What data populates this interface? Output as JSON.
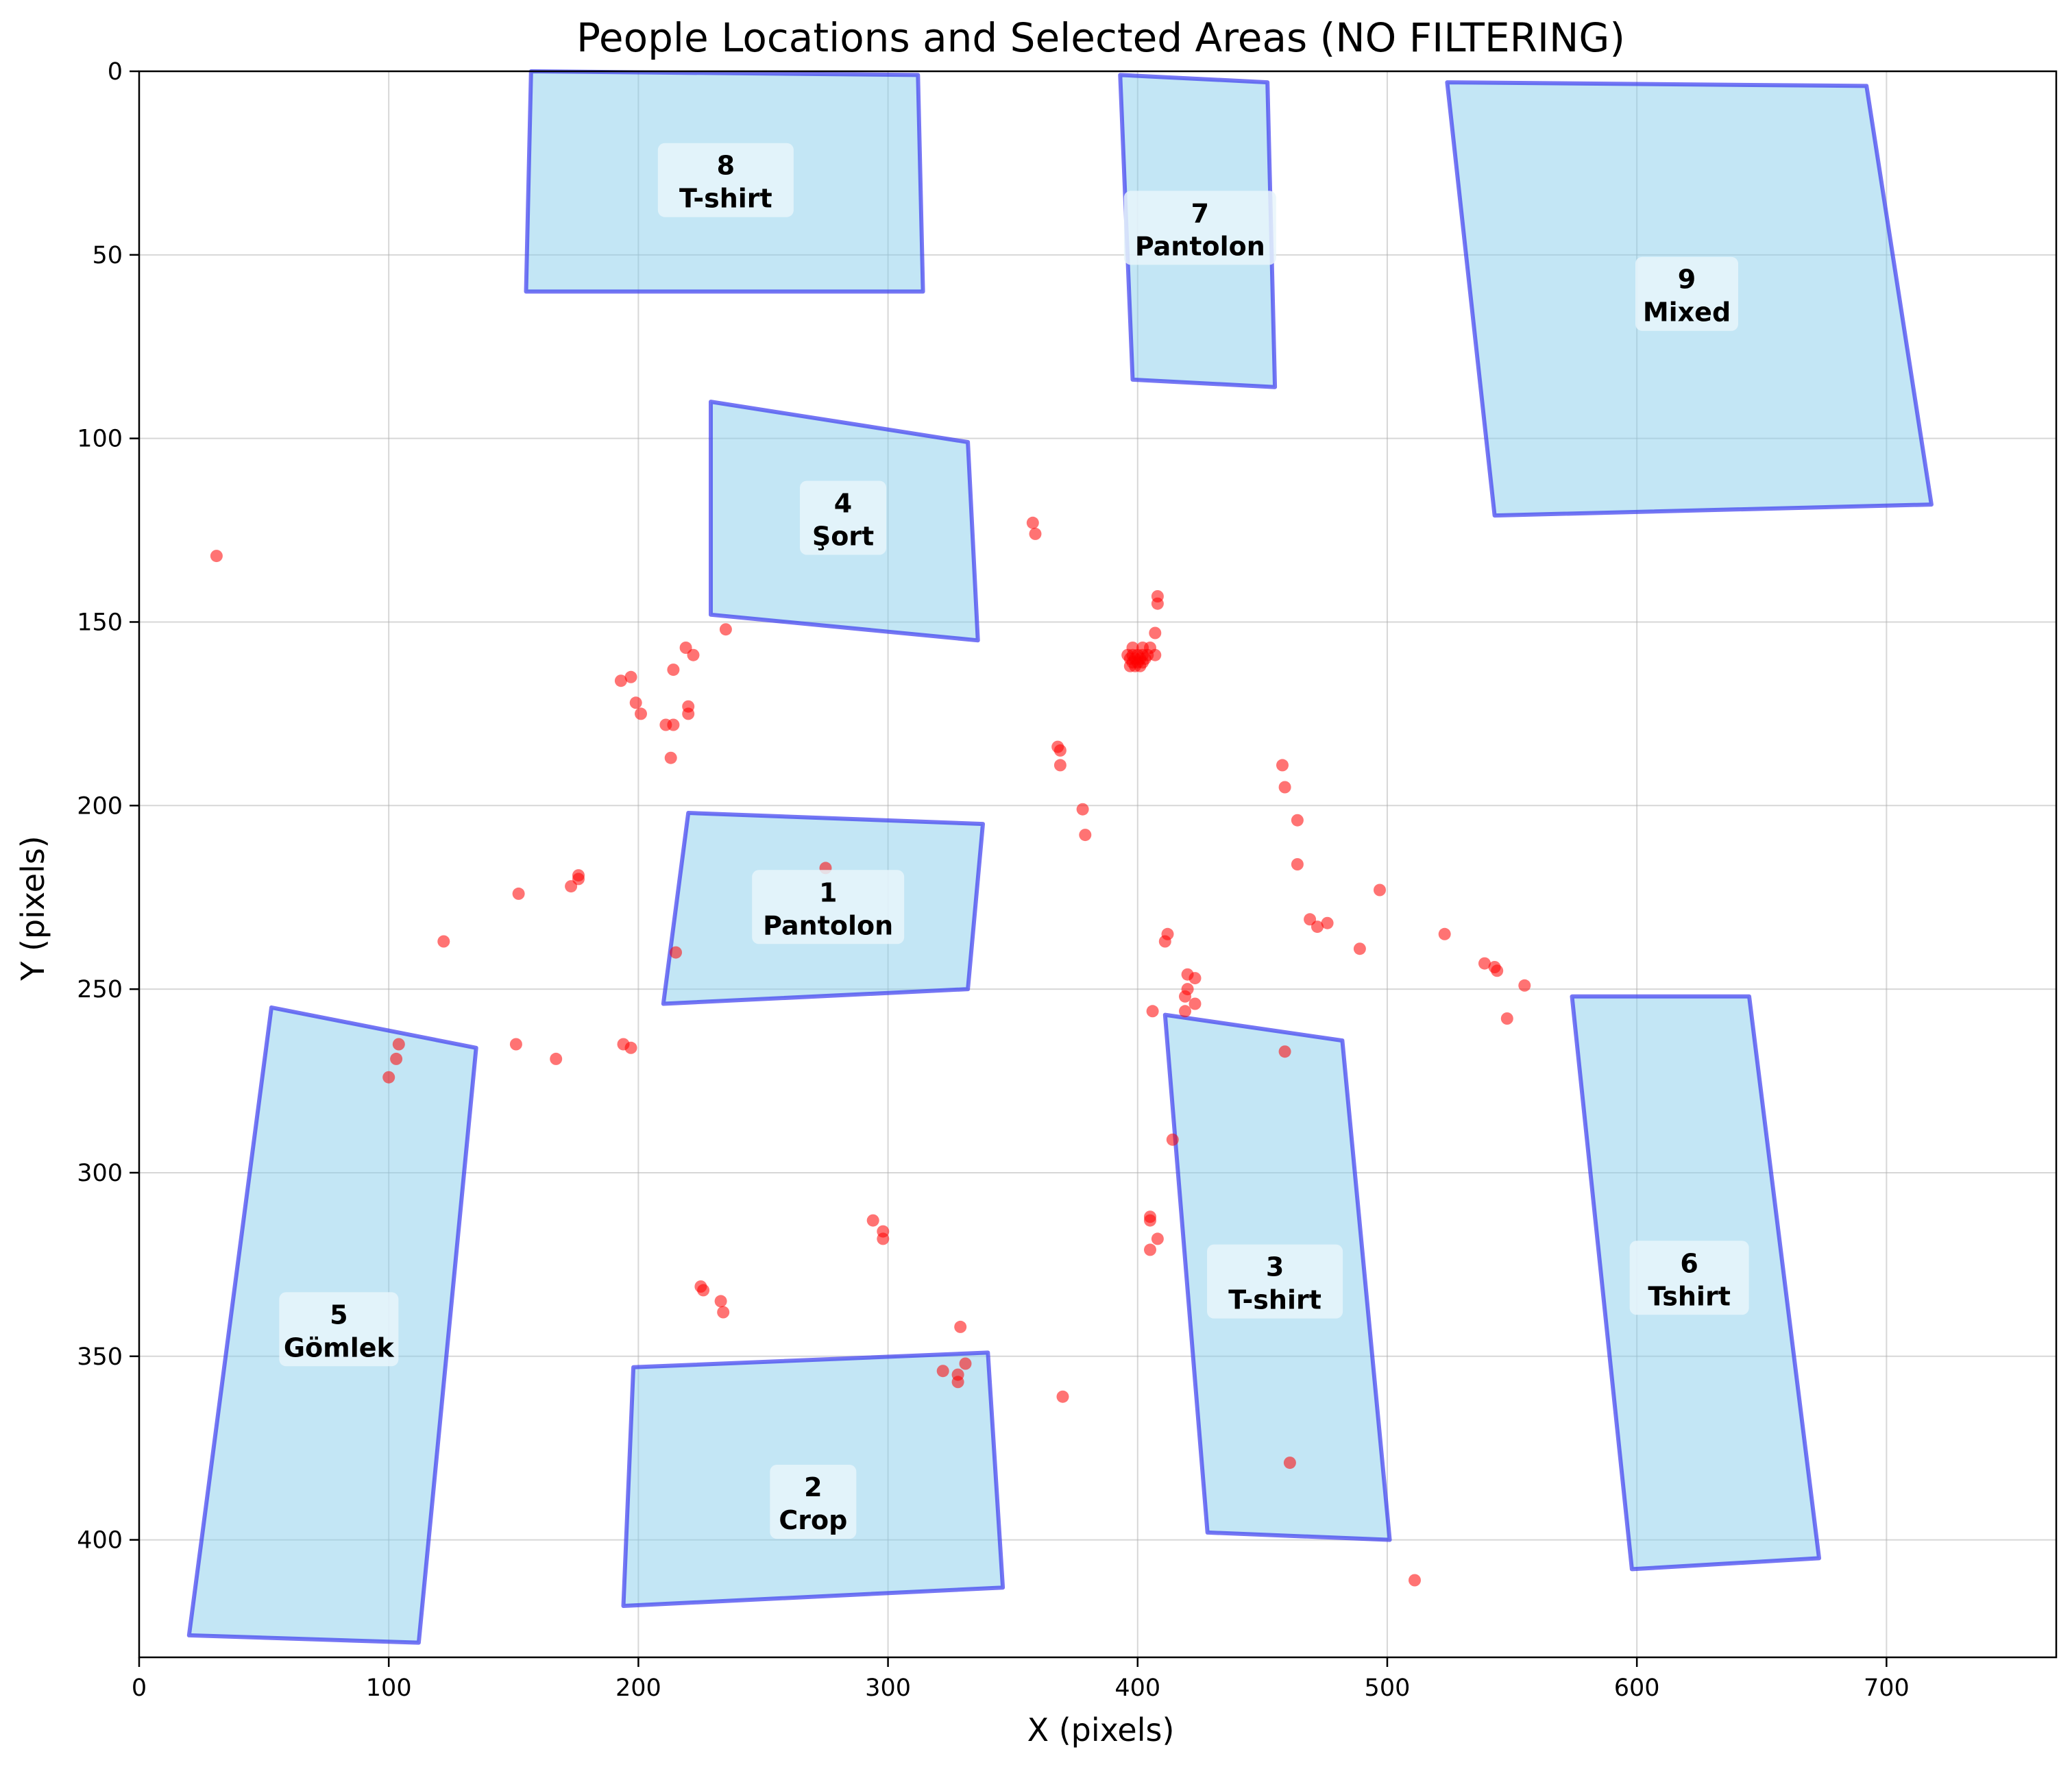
{
  "chart_data": {
    "type": "scatter",
    "title": "People Locations and Selected Areas (NO FILTERING)",
    "xlabel": "X (pixels)",
    "ylabel": "Y (pixels)",
    "xlim": [
      0,
      768
    ],
    "ylim": [
      432,
      0
    ],
    "y_inverted": true,
    "grid": true,
    "xticks": [
      0,
      100,
      200,
      300,
      400,
      500,
      600,
      700
    ],
    "yticks": [
      0,
      50,
      100,
      150,
      200,
      250,
      300,
      350,
      400
    ],
    "colors": {
      "point": "#f05050",
      "point_dense": "#ff0000",
      "area_fill": "#87ceeb",
      "area_edge": "#3c3cf0",
      "label_box": "#e8f4fa"
    },
    "areas": [
      {
        "id": "8",
        "label": "T-shirt",
        "polygon": [
          [
            157,
            0
          ],
          [
            312,
            1
          ],
          [
            314,
            60
          ],
          [
            155,
            60
          ]
        ],
        "label_pos": [
          235,
          30
        ]
      },
      {
        "id": "7",
        "label": "Pantolon",
        "polygon": [
          [
            393,
            1
          ],
          [
            452,
            3
          ],
          [
            455,
            86
          ],
          [
            398,
            84
          ]
        ],
        "label_pos": [
          425,
          43
        ]
      },
      {
        "id": "9",
        "label": "Mixed",
        "polygon": [
          [
            524,
            3
          ],
          [
            692,
            4
          ],
          [
            718,
            118
          ],
          [
            543,
            121
          ]
        ],
        "label_pos": [
          620,
          61
        ]
      },
      {
        "id": "4",
        "label": "Şort",
        "polygon": [
          [
            229,
            90
          ],
          [
            332,
            101
          ],
          [
            336,
            155
          ],
          [
            229,
            148
          ]
        ],
        "label_pos": [
          282,
          122
        ]
      },
      {
        "id": "1",
        "label": "Pantolon",
        "polygon": [
          [
            220,
            202
          ],
          [
            338,
            205
          ],
          [
            332,
            250
          ],
          [
            210,
            254
          ]
        ],
        "label_pos": [
          276,
          228
        ]
      },
      {
        "id": "5",
        "label": "Gömlek",
        "polygon": [
          [
            53,
            255
          ],
          [
            135,
            266
          ],
          [
            112,
            428
          ],
          [
            20,
            426
          ]
        ],
        "label_pos": [
          80,
          343
        ]
      },
      {
        "id": "3",
        "label": "T-shirt",
        "polygon": [
          [
            411,
            257
          ],
          [
            482,
            264
          ],
          [
            501,
            400
          ],
          [
            428,
            398
          ]
        ],
        "label_pos": [
          455,
          330
        ]
      },
      {
        "id": "6",
        "label": "Tshirt",
        "polygon": [
          [
            574,
            252
          ],
          [
            645,
            252
          ],
          [
            673,
            405
          ],
          [
            598,
            408
          ]
        ],
        "label_pos": [
          621,
          329
        ]
      },
      {
        "id": "2",
        "label": "Crop",
        "polygon": [
          [
            198,
            353
          ],
          [
            340,
            349
          ],
          [
            346,
            413
          ],
          [
            194,
            418
          ]
        ],
        "label_pos": [
          270,
          390
        ]
      }
    ],
    "points": [
      [
        31,
        132
      ],
      [
        358,
        123
      ],
      [
        359,
        126
      ],
      [
        408,
        143
      ],
      [
        408,
        145
      ],
      [
        235,
        152
      ],
      [
        407,
        153
      ],
      [
        398,
        157
      ],
      [
        402,
        157
      ],
      [
        405,
        157
      ],
      [
        396,
        159
      ],
      [
        398,
        159
      ],
      [
        400,
        159
      ],
      [
        402,
        159
      ],
      [
        404,
        159
      ],
      [
        407,
        159
      ],
      [
        397,
        160
      ],
      [
        399,
        160
      ],
      [
        401,
        160
      ],
      [
        403,
        160
      ],
      [
        398,
        161
      ],
      [
        400,
        161
      ],
      [
        402,
        161
      ],
      [
        399,
        162
      ],
      [
        401,
        162
      ],
      [
        397,
        162
      ],
      [
        219,
        157
      ],
      [
        222,
        159
      ],
      [
        193,
        166
      ],
      [
        197,
        165
      ],
      [
        214,
        163
      ],
      [
        199,
        172
      ],
      [
        201,
        175
      ],
      [
        220,
        173
      ],
      [
        220,
        175
      ],
      [
        211,
        178
      ],
      [
        214,
        178
      ],
      [
        213,
        187
      ],
      [
        368,
        184
      ],
      [
        369,
        185
      ],
      [
        369,
        189
      ],
      [
        378,
        201
      ],
      [
        379,
        208
      ],
      [
        458,
        189
      ],
      [
        459,
        195
      ],
      [
        464,
        204
      ],
      [
        464,
        216
      ],
      [
        176,
        219
      ],
      [
        176,
        220
      ],
      [
        173,
        222
      ],
      [
        152,
        224
      ],
      [
        275,
        217
      ],
      [
        497,
        223
      ],
      [
        122,
        237
      ],
      [
        215,
        240
      ],
      [
        469,
        231
      ],
      [
        472,
        233
      ],
      [
        476,
        232
      ],
      [
        489,
        239
      ],
      [
        523,
        235
      ],
      [
        411,
        237
      ],
      [
        412,
        235
      ],
      [
        539,
        243
      ],
      [
        543,
        244
      ],
      [
        544,
        245
      ],
      [
        555,
        249
      ],
      [
        548,
        258
      ],
      [
        420,
        246
      ],
      [
        423,
        247
      ],
      [
        420,
        250
      ],
      [
        419,
        252
      ],
      [
        423,
        254
      ],
      [
        419,
        256
      ],
      [
        406,
        256
      ],
      [
        104,
        265
      ],
      [
        103,
        269
      ],
      [
        100,
        274
      ],
      [
        151,
        265
      ],
      [
        167,
        269
      ],
      [
        194,
        265
      ],
      [
        197,
        266
      ],
      [
        459,
        267
      ],
      [
        414,
        291
      ],
      [
        294,
        313
      ],
      [
        298,
        316
      ],
      [
        298,
        318
      ],
      [
        405,
        312
      ],
      [
        405,
        313
      ],
      [
        408,
        318
      ],
      [
        405,
        321
      ],
      [
        225,
        331
      ],
      [
        226,
        332
      ],
      [
        233,
        335
      ],
      [
        234,
        338
      ],
      [
        329,
        342
      ],
      [
        322,
        354
      ],
      [
        331,
        352
      ],
      [
        328,
        355
      ],
      [
        328,
        357
      ],
      [
        370,
        361
      ],
      [
        461,
        379
      ],
      [
        511,
        411
      ]
    ]
  }
}
